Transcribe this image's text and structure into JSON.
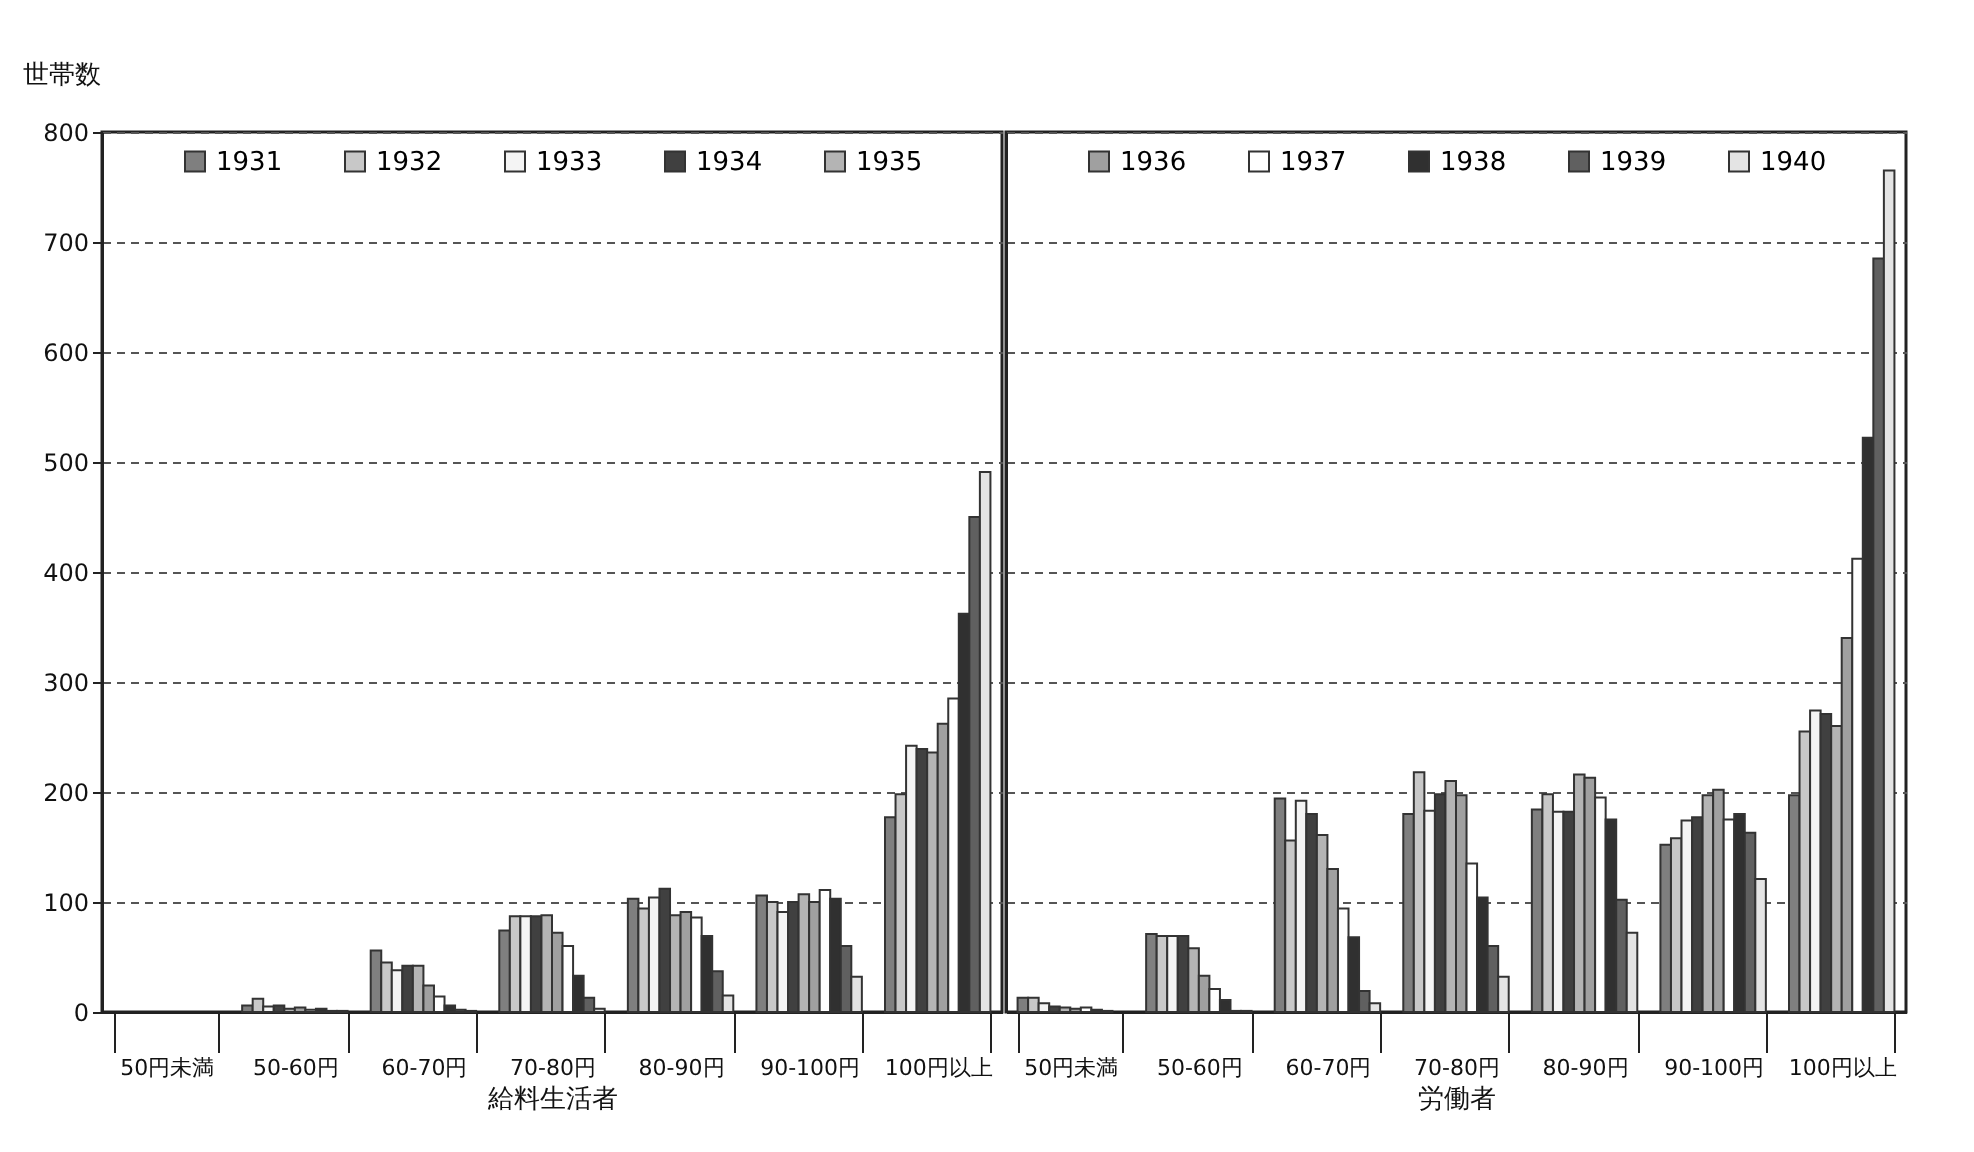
{
  "chart_data": [
    {
      "type": "bar",
      "xlabel": "給料生活者",
      "ylabel": "世帯数",
      "categories": [
        "50円未満",
        "50-60円",
        "60-70円",
        "70-80円",
        "80-90円",
        "90-100円",
        "100円以上"
      ],
      "ylim": [
        0,
        800
      ],
      "yticks": [
        0,
        100,
        200,
        300,
        400,
        500,
        600,
        700,
        800
      ],
      "grid": "y",
      "legend": "top",
      "series": [
        {
          "name": "1931",
          "color": "#7f7f7f",
          "values": [
            null,
            6,
            56,
            74,
            103,
            106,
            177
          ]
        },
        {
          "name": "1932",
          "color": "#c8c8c8",
          "values": [
            null,
            12,
            45,
            87,
            94,
            100,
            198
          ]
        },
        {
          "name": "1933",
          "color": "#f4f4f4",
          "values": [
            null,
            5,
            38,
            87,
            104,
            91,
            242
          ]
        },
        {
          "name": "1934",
          "color": "#404040",
          "values": [
            null,
            6,
            42,
            87,
            112,
            100,
            239
          ]
        },
        {
          "name": "1935",
          "color": "#b4b4b4",
          "values": [
            null,
            3,
            42,
            88,
            88,
            107,
            236
          ]
        },
        {
          "name": "1936",
          "color": "#a0a0a0",
          "values": [
            null,
            4,
            24,
            72,
            91,
            100,
            262
          ]
        },
        {
          "name": "1937",
          "color": "#ffffff",
          "values": [
            null,
            2,
            14,
            60,
            86,
            111,
            285
          ]
        },
        {
          "name": "1938",
          "color": "#303030",
          "values": [
            null,
            3,
            6,
            33,
            69,
            103,
            362
          ]
        },
        {
          "name": "1939",
          "color": "#606060",
          "values": [
            null,
            1,
            2,
            13,
            37,
            60,
            450
          ]
        },
        {
          "name": "1940",
          "color": "#e4e4e4",
          "values": [
            null,
            1,
            1,
            3,
            15,
            32,
            491
          ]
        }
      ]
    },
    {
      "type": "bar",
      "xlabel": "労働者",
      "categories": [
        "50円未満",
        "50-60円",
        "60-70円",
        "70-80円",
        "80-90円",
        "90-100円",
        "100円以上"
      ],
      "ylim": [
        0,
        800
      ],
      "yticks": [
        0,
        100,
        200,
        300,
        400,
        500,
        600,
        700,
        800
      ],
      "grid": "y",
      "legend": "top",
      "tick_labels": "x",
      "series": [
        {
          "name": "1931",
          "color": "#7f7f7f",
          "values": [
            13,
            71,
            194,
            180,
            184,
            152,
            197
          ]
        },
        {
          "name": "1932",
          "color": "#c8c8c8",
          "values": [
            13,
            69,
            156,
            218,
            198,
            158,
            255
          ]
        },
        {
          "name": "1933",
          "color": "#f4f4f4",
          "values": [
            8,
            69,
            192,
            183,
            182,
            174,
            274
          ]
        },
        {
          "name": "1934",
          "color": "#404040",
          "values": [
            5,
            69,
            180,
            198,
            182,
            177,
            271
          ]
        },
        {
          "name": "1935",
          "color": "#b4b4b4",
          "values": [
            4,
            58,
            161,
            210,
            216,
            197,
            260
          ]
        },
        {
          "name": "1936",
          "color": "#a0a0a0",
          "values": [
            3,
            33,
            130,
            197,
            213,
            202,
            340
          ]
        },
        {
          "name": "1937",
          "color": "#ffffff",
          "values": [
            4,
            21,
            94,
            135,
            195,
            175,
            412
          ]
        },
        {
          "name": "1938",
          "color": "#303030",
          "values": [
            2,
            11,
            68,
            104,
            175,
            180,
            522
          ]
        },
        {
          "name": "1939",
          "color": "#606060",
          "values": [
            1,
            1,
            19,
            60,
            102,
            163,
            685
          ]
        },
        {
          "name": "1940",
          "color": "#e4e4e4",
          "values": [
            null,
            1,
            8,
            32,
            72,
            121,
            765
          ]
        }
      ]
    }
  ]
}
